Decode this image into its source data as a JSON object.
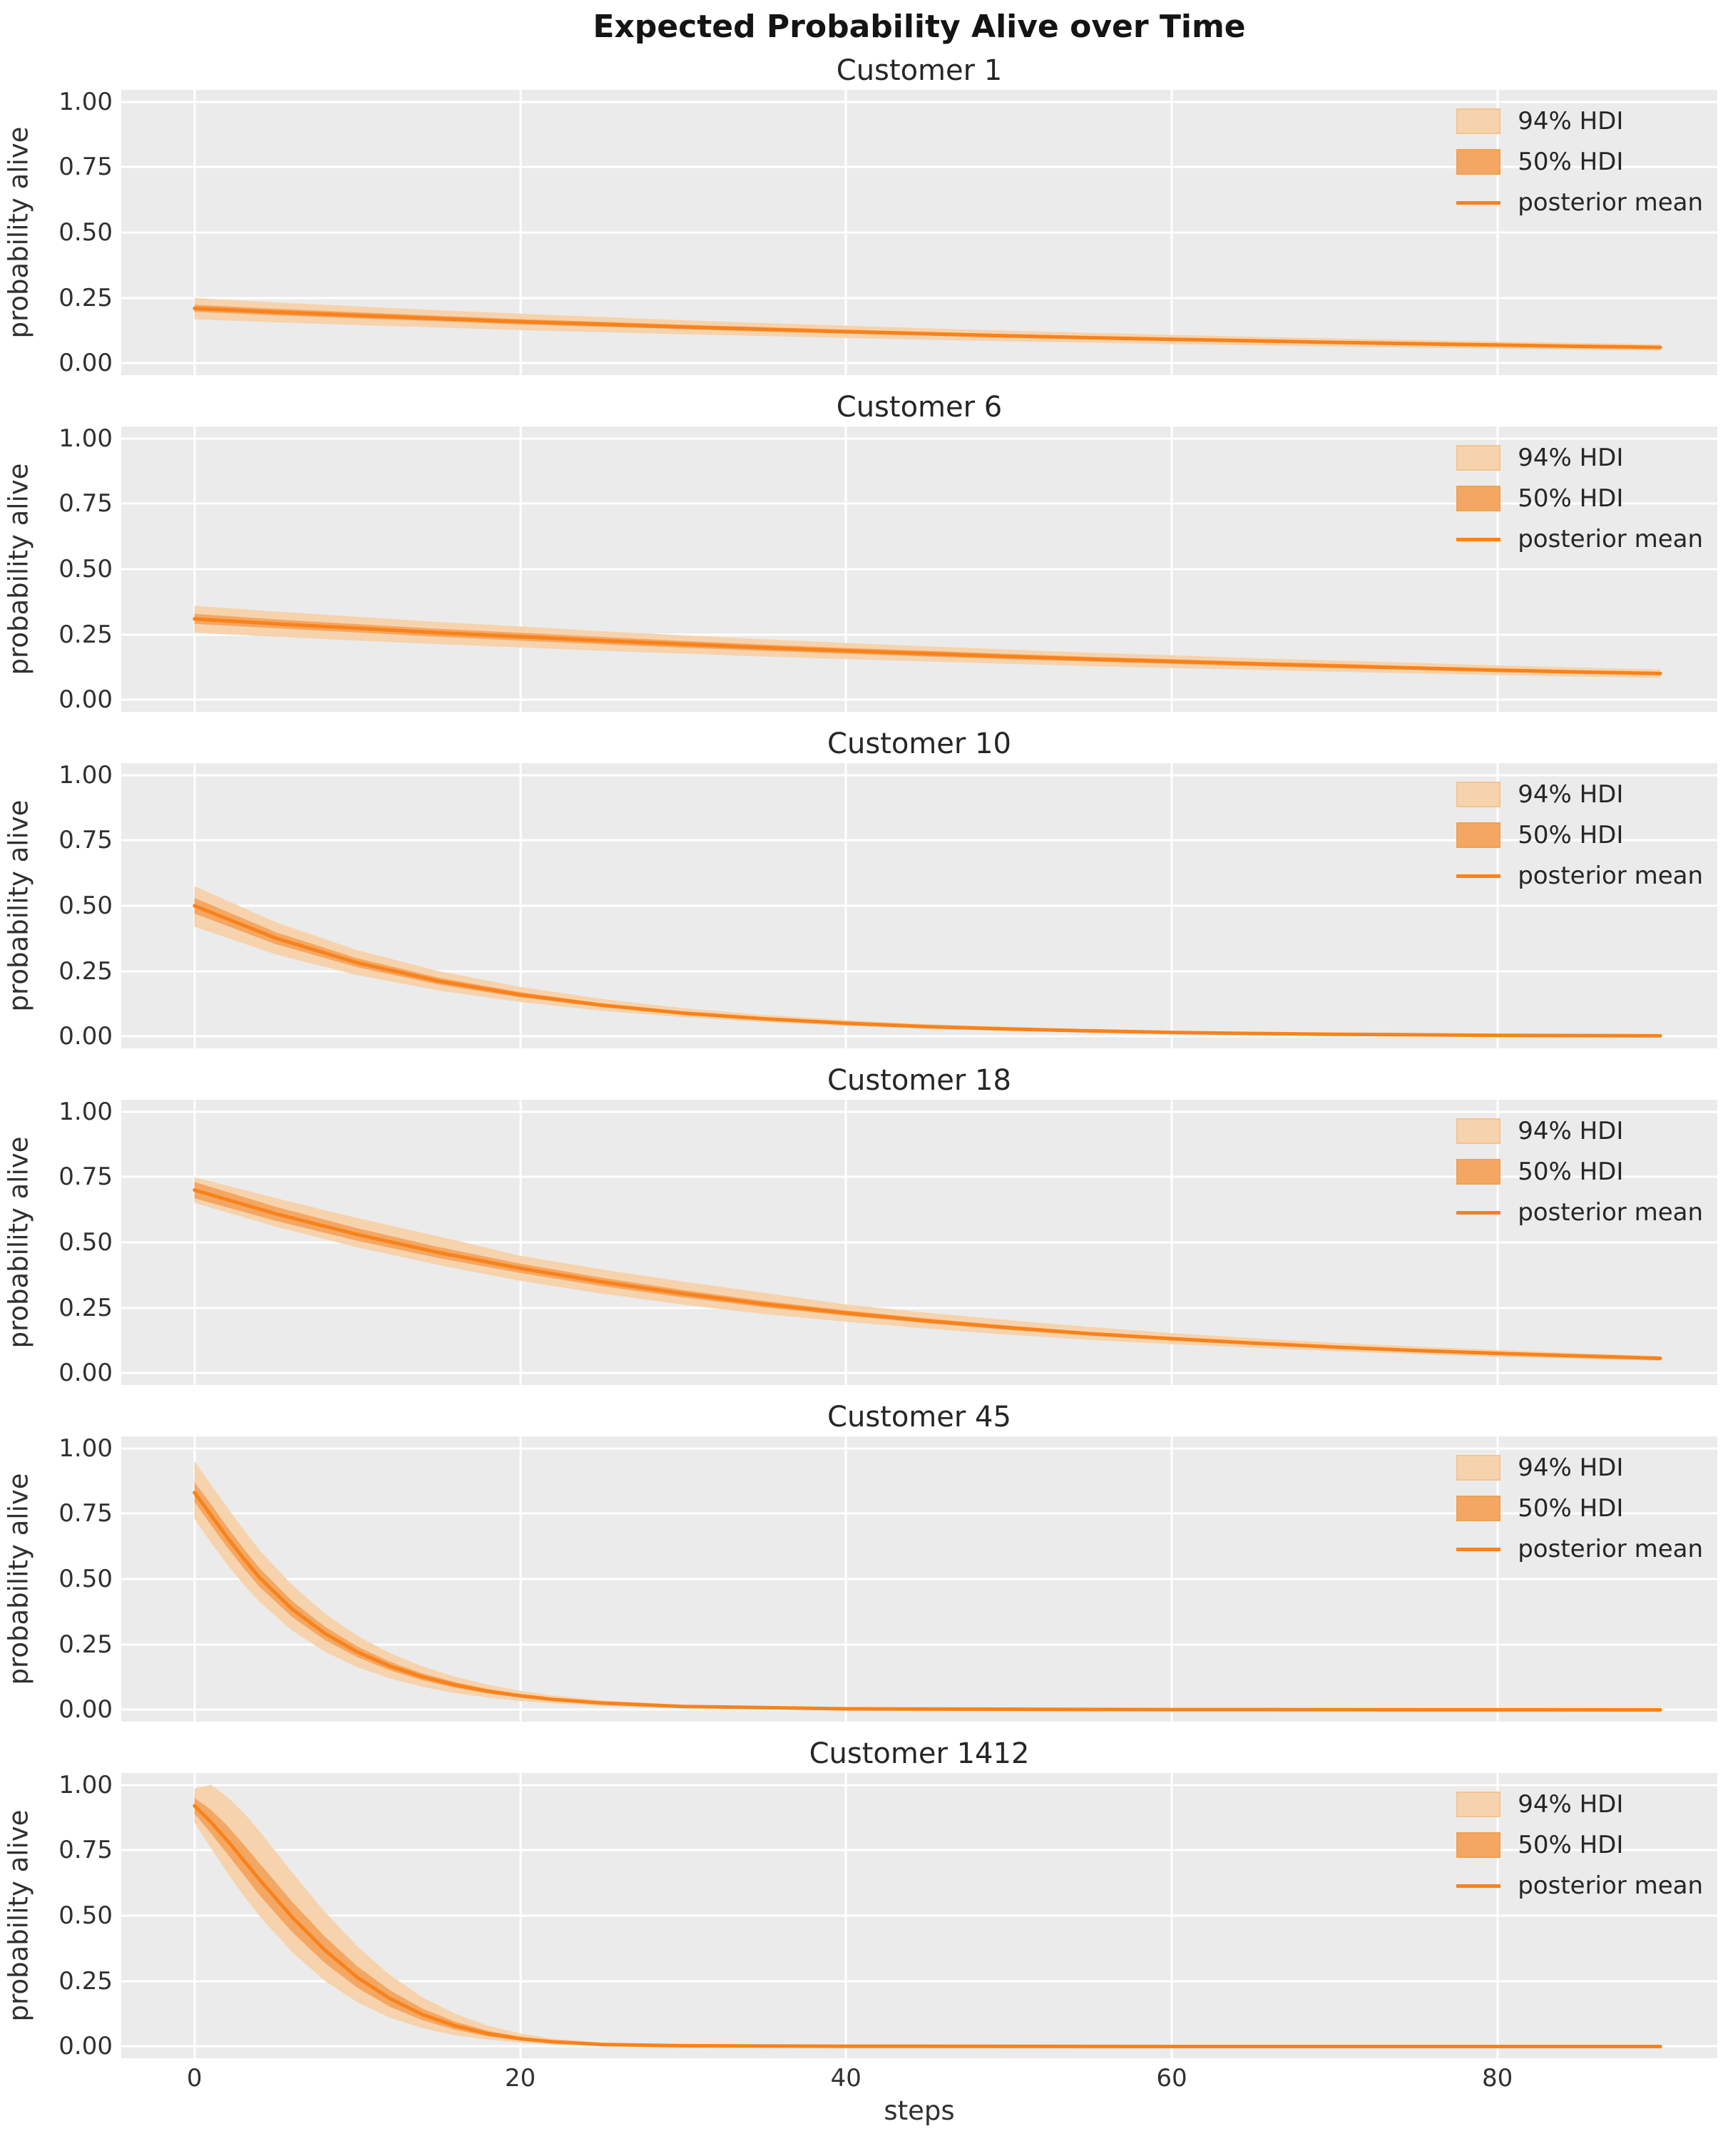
{
  "figure": {
    "title": "Expected Probability Alive over Time"
  },
  "axis": {
    "ylabel": "probability alive",
    "xlabel": "steps",
    "yticks": [
      "1.00",
      "0.75",
      "0.50",
      "0.25",
      "0.00"
    ],
    "xticks": [
      "0",
      "20",
      "40",
      "60",
      "80"
    ]
  },
  "legend": {
    "hdi94": "94% HDI",
    "hdi50": "50% HDI",
    "mean": "posterior mean"
  },
  "colors": {
    "posterior_mean": "#f8821b",
    "hdi_50": "#f4a763",
    "hdi_94": "#f6d3ad",
    "axes_background": "#ebebeb",
    "gridline": "#ffffff",
    "text": "#303030"
  },
  "chart_data": [
    {
      "type": "line",
      "title": "Customer 1",
      "xlabel": "steps",
      "ylabel": "probability alive",
      "xlim": [
        -4.5,
        93.5
      ],
      "ylim": [
        -0.045,
        1.045
      ],
      "grid": true,
      "legend_position": "upper right",
      "x": [
        0,
        5,
        10,
        15,
        20,
        25,
        30,
        35,
        40,
        45,
        50,
        55,
        60,
        65,
        70,
        75,
        80,
        85,
        90
      ],
      "series": [
        {
          "name": "posterior mean",
          "values": [
            0.21,
            0.196,
            0.183,
            0.171,
            0.159,
            0.149,
            0.139,
            0.13,
            0.121,
            0.113,
            0.105,
            0.098,
            0.092,
            0.086,
            0.08,
            0.075,
            0.07,
            0.065,
            0.061
          ]
        },
        {
          "name": "94% HDI upper",
          "values": [
            0.25,
            0.233,
            0.218,
            0.203,
            0.19,
            0.177,
            0.165,
            0.154,
            0.144,
            0.134,
            0.125,
            0.117,
            0.109,
            0.102,
            0.095,
            0.089,
            0.083,
            0.078,
            0.073
          ]
        },
        {
          "name": "94% HDI lower",
          "values": [
            0.168,
            0.157,
            0.146,
            0.137,
            0.127,
            0.119,
            0.111,
            0.104,
            0.097,
            0.09,
            0.084,
            0.079,
            0.073,
            0.069,
            0.064,
            0.06,
            0.056,
            0.052,
            0.049
          ]
        },
        {
          "name": "50% HDI upper",
          "values": [
            0.224,
            0.209,
            0.195,
            0.182,
            0.169,
            0.159,
            0.148,
            0.138,
            0.129,
            0.12,
            0.112,
            0.104,
            0.098,
            0.092,
            0.085,
            0.08,
            0.075,
            0.069,
            0.065
          ]
        },
        {
          "name": "50% HDI lower",
          "values": [
            0.197,
            0.184,
            0.172,
            0.161,
            0.149,
            0.14,
            0.131,
            0.122,
            0.114,
            0.106,
            0.099,
            0.092,
            0.086,
            0.081,
            0.075,
            0.071,
            0.066,
            0.061,
            0.057
          ]
        }
      ]
    },
    {
      "type": "line",
      "title": "Customer 6",
      "xlabel": "steps",
      "ylabel": "probability alive",
      "xlim": [
        -4.5,
        93.5
      ],
      "ylim": [
        -0.045,
        1.045
      ],
      "grid": true,
      "legend_position": "upper right",
      "x": [
        0,
        5,
        10,
        15,
        20,
        25,
        30,
        35,
        40,
        45,
        50,
        55,
        60,
        65,
        70,
        75,
        80,
        85,
        90
      ],
      "series": [
        {
          "name": "posterior mean",
          "values": [
            0.31,
            0.291,
            0.274,
            0.257,
            0.242,
            0.227,
            0.213,
            0.2,
            0.188,
            0.177,
            0.166,
            0.156,
            0.147,
            0.138,
            0.13,
            0.122,
            0.114,
            0.107,
            0.101
          ]
        },
        {
          "name": "94% HDI upper",
          "values": [
            0.36,
            0.338,
            0.318,
            0.298,
            0.281,
            0.263,
            0.247,
            0.232,
            0.218,
            0.205,
            0.193,
            0.181,
            0.171,
            0.16,
            0.151,
            0.142,
            0.132,
            0.124,
            0.117
          ]
        },
        {
          "name": "94% HDI lower",
          "values": [
            0.257,
            0.242,
            0.227,
            0.213,
            0.201,
            0.188,
            0.177,
            0.166,
            0.156,
            0.147,
            0.138,
            0.129,
            0.122,
            0.115,
            0.108,
            0.101,
            0.095,
            0.089,
            0.084
          ]
        },
        {
          "name": "50% HDI upper",
          "values": [
            0.329,
            0.308,
            0.29,
            0.272,
            0.257,
            0.241,
            0.226,
            0.212,
            0.199,
            0.188,
            0.176,
            0.165,
            0.156,
            0.146,
            0.138,
            0.129,
            0.121,
            0.113,
            0.107
          ]
        },
        {
          "name": "50% HDI lower",
          "values": [
            0.291,
            0.274,
            0.258,
            0.242,
            0.227,
            0.213,
            0.2,
            0.188,
            0.177,
            0.166,
            0.156,
            0.147,
            0.138,
            0.13,
            0.122,
            0.115,
            0.107,
            0.101,
            0.095
          ]
        }
      ]
    },
    {
      "type": "line",
      "title": "Customer 10",
      "xlabel": "steps",
      "ylabel": "probability alive",
      "xlim": [
        -4.5,
        93.5
      ],
      "ylim": [
        -0.045,
        1.045
      ],
      "grid": true,
      "legend_position": "upper right",
      "x": [
        0,
        5,
        10,
        15,
        20,
        25,
        30,
        35,
        40,
        45,
        50,
        55,
        60,
        65,
        70,
        75,
        80,
        85,
        90
      ],
      "series": [
        {
          "name": "posterior mean",
          "values": [
            0.5,
            0.376,
            0.282,
            0.212,
            0.16,
            0.12,
            0.09,
            0.068,
            0.051,
            0.038,
            0.029,
            0.022,
            0.016,
            0.012,
            0.009,
            0.007,
            0.005,
            0.004,
            0.003
          ]
        },
        {
          "name": "94% HDI upper",
          "values": [
            0.575,
            0.437,
            0.33,
            0.25,
            0.19,
            0.144,
            0.109,
            0.083,
            0.063,
            0.048,
            0.037,
            0.028,
            0.021,
            0.016,
            0.012,
            0.009,
            0.007,
            0.006,
            0.005
          ]
        },
        {
          "name": "94% HDI lower",
          "values": [
            0.42,
            0.314,
            0.235,
            0.176,
            0.132,
            0.099,
            0.074,
            0.055,
            0.041,
            0.03,
            0.022,
            0.016,
            0.012,
            0.009,
            0.006,
            0.005,
            0.003,
            0.002,
            0.002
          ]
        },
        {
          "name": "50% HDI upper",
          "values": [
            0.53,
            0.399,
            0.299,
            0.225,
            0.17,
            0.127,
            0.095,
            0.072,
            0.054,
            0.04,
            0.031,
            0.023,
            0.017,
            0.013,
            0.01,
            0.007,
            0.005,
            0.004,
            0.003
          ]
        },
        {
          "name": "50% HDI lower",
          "values": [
            0.47,
            0.353,
            0.265,
            0.199,
            0.15,
            0.113,
            0.085,
            0.064,
            0.048,
            0.036,
            0.027,
            0.021,
            0.015,
            0.011,
            0.008,
            0.007,
            0.005,
            0.004,
            0.003
          ]
        }
      ]
    },
    {
      "type": "line",
      "title": "Customer 18",
      "xlabel": "steps",
      "ylabel": "probability alive",
      "xlim": [
        -4.5,
        93.5
      ],
      "ylim": [
        -0.045,
        1.045
      ],
      "grid": true,
      "legend_position": "upper right",
      "x": [
        0,
        5,
        10,
        15,
        20,
        25,
        30,
        35,
        40,
        45,
        50,
        55,
        60,
        65,
        70,
        75,
        80,
        85,
        90
      ],
      "series": [
        {
          "name": "posterior mean",
          "values": [
            0.7,
            0.609,
            0.53,
            0.461,
            0.401,
            0.349,
            0.304,
            0.264,
            0.23,
            0.2,
            0.174,
            0.151,
            0.132,
            0.115,
            0.1,
            0.087,
            0.076,
            0.066,
            0.057
          ]
        },
        {
          "name": "94% HDI upper",
          "values": [
            0.749,
            0.669,
            0.593,
            0.523,
            0.449,
            0.397,
            0.35,
            0.307,
            0.263,
            0.231,
            0.203,
            0.177,
            0.153,
            0.134,
            0.117,
            0.102,
            0.089,
            0.077,
            0.066
          ]
        },
        {
          "name": "94% HDI lower",
          "values": [
            0.651,
            0.56,
            0.481,
            0.413,
            0.353,
            0.304,
            0.262,
            0.226,
            0.197,
            0.17,
            0.147,
            0.127,
            0.111,
            0.097,
            0.084,
            0.073,
            0.063,
            0.055,
            0.048
          ]
        },
        {
          "name": "50% HDI upper",
          "values": [
            0.731,
            0.636,
            0.554,
            0.482,
            0.419,
            0.365,
            0.318,
            0.276,
            0.24,
            0.209,
            0.182,
            0.158,
            0.138,
            0.12,
            0.105,
            0.091,
            0.079,
            0.069,
            0.06
          ]
        },
        {
          "name": "50% HDI lower",
          "values": [
            0.668,
            0.582,
            0.506,
            0.44,
            0.383,
            0.333,
            0.29,
            0.252,
            0.22,
            0.191,
            0.166,
            0.144,
            0.126,
            0.11,
            0.096,
            0.083,
            0.073,
            0.063,
            0.054
          ]
        }
      ]
    },
    {
      "type": "line",
      "title": "Customer 45",
      "xlabel": "steps",
      "ylabel": "probability alive",
      "xlim": [
        -4.5,
        93.5
      ],
      "ylim": [
        -0.045,
        1.045
      ],
      "grid": true,
      "legend_position": "upper right",
      "x": [
        0,
        1,
        2,
        3,
        4,
        6,
        8,
        10,
        12,
        14,
        16,
        18,
        20,
        22,
        25,
        30,
        40,
        60,
        90
      ],
      "series": [
        {
          "name": "posterior mean",
          "values": [
            0.83,
            0.745,
            0.66,
            0.58,
            0.505,
            0.385,
            0.292,
            0.221,
            0.167,
            0.126,
            0.095,
            0.071,
            0.054,
            0.04,
            0.026,
            0.013,
            0.004,
            0.001,
            0.0
          ]
        },
        {
          "name": "94% HDI upper",
          "values": [
            0.95,
            0.862,
            0.775,
            0.69,
            0.61,
            0.478,
            0.368,
            0.283,
            0.217,
            0.166,
            0.127,
            0.096,
            0.073,
            0.055,
            0.037,
            0.019,
            0.006,
            0.002,
            0.001
          ]
        },
        {
          "name": "94% HDI lower",
          "values": [
            0.73,
            0.64,
            0.556,
            0.48,
            0.412,
            0.303,
            0.222,
            0.163,
            0.12,
            0.088,
            0.064,
            0.047,
            0.034,
            0.025,
            0.015,
            0.007,
            0.002,
            0.0,
            0.0
          ]
        },
        {
          "name": "50% HDI upper",
          "values": [
            0.87,
            0.787,
            0.7,
            0.618,
            0.541,
            0.416,
            0.318,
            0.242,
            0.184,
            0.139,
            0.106,
            0.08,
            0.06,
            0.045,
            0.029,
            0.015,
            0.005,
            0.001,
            0.0
          ]
        },
        {
          "name": "50% HDI lower",
          "values": [
            0.795,
            0.707,
            0.622,
            0.543,
            0.47,
            0.355,
            0.267,
            0.201,
            0.151,
            0.113,
            0.085,
            0.063,
            0.047,
            0.035,
            0.022,
            0.011,
            0.003,
            0.001,
            0.0
          ]
        }
      ]
    },
    {
      "type": "line",
      "title": "Customer 1412",
      "xlabel": "steps",
      "ylabel": "probability alive",
      "xlim": [
        -4.5,
        93.5
      ],
      "ylim": [
        -0.045,
        1.045
      ],
      "grid": true,
      "legend_position": "upper right",
      "x": [
        0,
        1,
        2,
        3,
        4,
        6,
        8,
        10,
        12,
        14,
        16,
        18,
        20,
        22,
        25,
        30,
        40,
        60,
        90
      ],
      "series": [
        {
          "name": "posterior mean",
          "values": [
            0.92,
            0.858,
            0.788,
            0.713,
            0.637,
            0.494,
            0.368,
            0.264,
            0.183,
            0.122,
            0.079,
            0.049,
            0.03,
            0.018,
            0.008,
            0.003,
            0.001,
            0.0,
            0.0
          ]
        },
        {
          "name": "94% HDI upper",
          "values": [
            0.985,
            1.0,
            0.955,
            0.895,
            0.822,
            0.665,
            0.515,
            0.382,
            0.273,
            0.188,
            0.125,
            0.08,
            0.05,
            0.03,
            0.015,
            0.005,
            0.001,
            0.0,
            0.0
          ]
        },
        {
          "name": "94% HDI lower",
          "values": [
            0.855,
            0.76,
            0.665,
            0.578,
            0.498,
            0.36,
            0.251,
            0.169,
            0.11,
            0.07,
            0.043,
            0.026,
            0.015,
            0.008,
            0.004,
            0.001,
            0.0,
            0.0,
            0.0
          ]
        },
        {
          "name": "50% HDI upper",
          "values": [
            0.95,
            0.905,
            0.845,
            0.773,
            0.7,
            0.553,
            0.42,
            0.306,
            0.215,
            0.145,
            0.095,
            0.06,
            0.037,
            0.022,
            0.01,
            0.004,
            0.001,
            0.0,
            0.0
          ]
        },
        {
          "name": "50% HDI lower",
          "values": [
            0.89,
            0.815,
            0.737,
            0.657,
            0.578,
            0.437,
            0.319,
            0.224,
            0.152,
            0.1,
            0.064,
            0.039,
            0.023,
            0.014,
            0.006,
            0.002,
            0.0,
            0.0,
            0.0
          ]
        }
      ]
    }
  ]
}
